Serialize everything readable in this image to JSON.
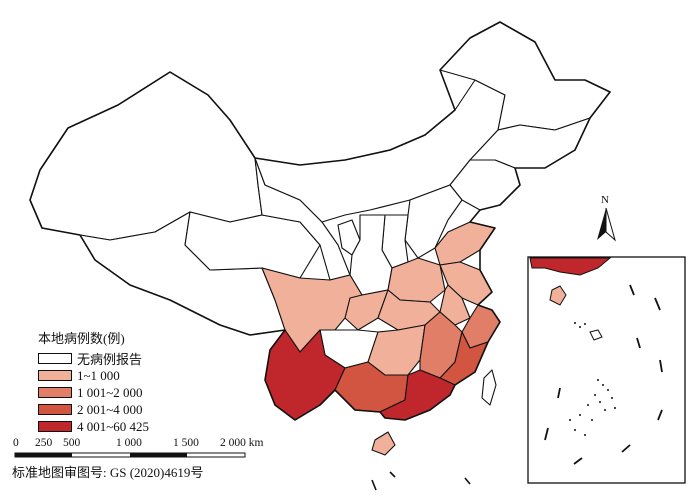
{
  "legend": {
    "title": "本地病例数(例)",
    "items": [
      {
        "label": "无病例报告",
        "color": "#ffffff"
      },
      {
        "label": "1~1 000",
        "color": "#f0b09a"
      },
      {
        "label": "1 001~2 000",
        "color": "#e07e68"
      },
      {
        "label": "2 001~4 000",
        "color": "#d15540"
      },
      {
        "label": "4 001~60 425",
        "color": "#c0272d"
      }
    ]
  },
  "scale_bar": {
    "labels": [
      "0",
      "250",
      "500",
      "1 000",
      "1 500",
      "2 000 km"
    ]
  },
  "north_arrow": {
    "label": "N"
  },
  "approval_number": "标准地图审图号: GS (2020)4619号",
  "regions": [
    {
      "name": "Xinjiang",
      "class": 0
    },
    {
      "name": "Tibet",
      "class": 0
    },
    {
      "name": "Qinghai",
      "class": 0
    },
    {
      "name": "Gansu",
      "class": 0
    },
    {
      "name": "Inner Mongolia",
      "class": 0
    },
    {
      "name": "Heilongjiang",
      "class": 0
    },
    {
      "name": "Jilin",
      "class": 0
    },
    {
      "name": "Liaoning",
      "class": 0
    },
    {
      "name": "Hebei",
      "class": 0
    },
    {
      "name": "Shanxi",
      "class": 0
    },
    {
      "name": "Shaanxi",
      "class": 0
    },
    {
      "name": "Ningxia",
      "class": 0
    },
    {
      "name": "Guizhou",
      "class": 0
    },
    {
      "name": "Sichuan",
      "class": 1
    },
    {
      "name": "Chongqing",
      "class": 1
    },
    {
      "name": "Hubei",
      "class": 1
    },
    {
      "name": "Hunan",
      "class": 1
    },
    {
      "name": "Henan",
      "class": 1
    },
    {
      "name": "Anhui",
      "class": 1
    },
    {
      "name": "Shandong",
      "class": 1
    },
    {
      "name": "Jiangsu",
      "class": 1
    },
    {
      "name": "Hainan",
      "class": 1
    },
    {
      "name": "Jiangxi",
      "class": 2
    },
    {
      "name": "Zhejiang",
      "class": 2
    },
    {
      "name": "Guangxi",
      "class": 3
    },
    {
      "name": "Fujian",
      "class": 3
    },
    {
      "name": "Yunnan",
      "class": 4
    },
    {
      "name": "Guangdong",
      "class": 4
    }
  ]
}
